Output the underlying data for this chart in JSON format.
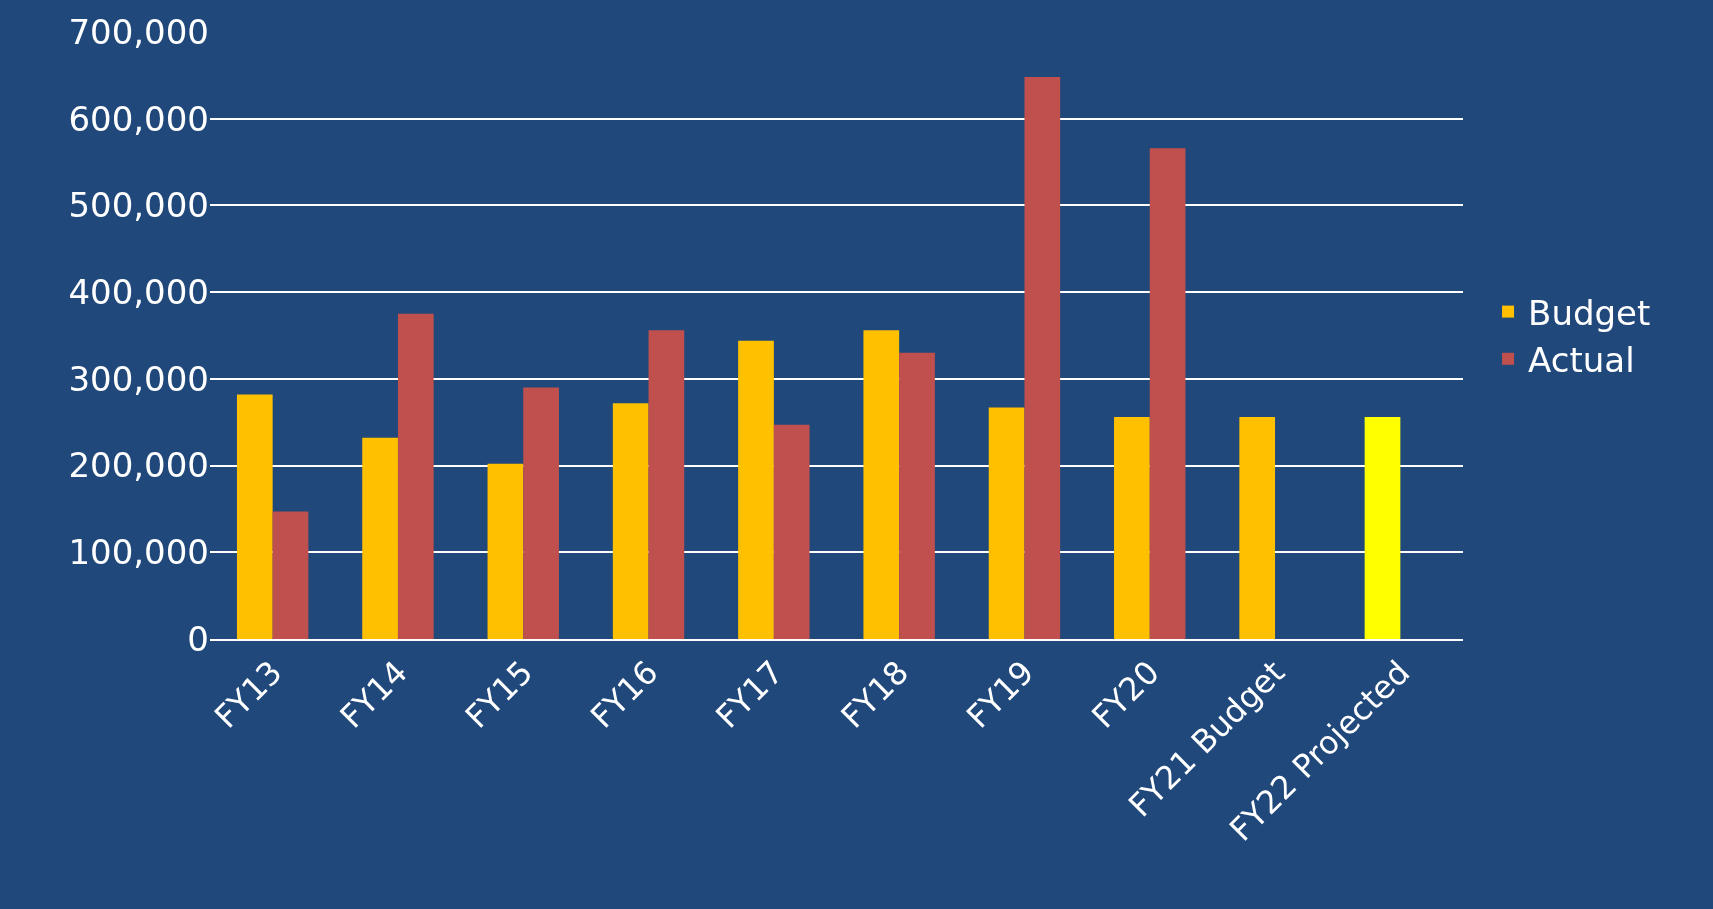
{
  "chart_data": {
    "type": "bar",
    "categories": [
      "FY13",
      "FY14",
      "FY15",
      "FY16",
      "FY17",
      "FY18",
      "FY19",
      "FY20",
      "FY21 Budget",
      "FY22 Projected"
    ],
    "series": [
      {
        "name": "Budget",
        "color": "#ffc000",
        "colors": [
          "#ffc000",
          "#ffc000",
          "#ffc000",
          "#ffc000",
          "#ffc000",
          "#ffc000",
          "#ffc000",
          "#ffc000",
          "#ffc000",
          "#ffff00"
        ],
        "values": [
          282000,
          232000,
          202000,
          272000,
          344000,
          356000,
          267000,
          256000,
          256000,
          256000
        ]
      },
      {
        "name": "Actual",
        "color": "#c0504d",
        "values": [
          147000,
          375000,
          290000,
          356000,
          247000,
          330000,
          648000,
          566000,
          null,
          null
        ]
      }
    ],
    "ylim": [
      0,
      700000
    ],
    "yticks": [
      {
        "value": 0,
        "label": "0"
      },
      {
        "value": 100000,
        "label": "100,000"
      },
      {
        "value": 200000,
        "label": "200,000"
      },
      {
        "value": 300000,
        "label": "300,000"
      },
      {
        "value": 400000,
        "label": "400,000"
      },
      {
        "value": 500000,
        "label": "500,000"
      },
      {
        "value": 600000,
        "label": "600,000"
      },
      {
        "value": 700000,
        "label": "700,000"
      }
    ],
    "grid": "y",
    "legend": "right"
  }
}
